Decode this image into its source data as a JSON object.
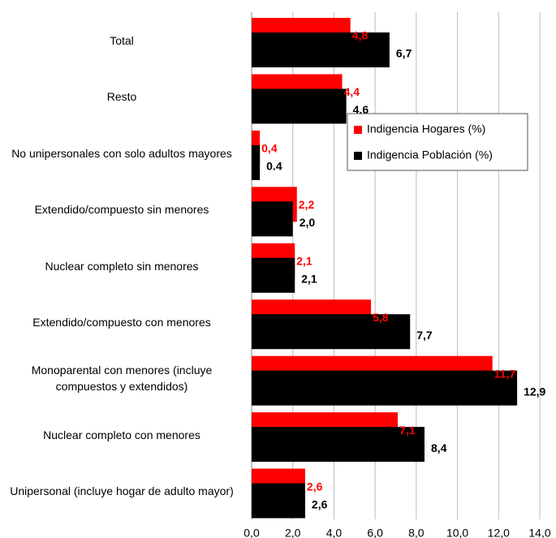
{
  "chart_data": {
    "type": "bar",
    "orientation": "horizontal",
    "categories": [
      "Total",
      "Resto",
      "No unipersonales con solo adultos mayores",
      "Extendido/compuesto sin menores",
      "Nuclear completo sin menores",
      "Extendido/compuesto con menores",
      "Monoparental con menores (incluye compuestos y extendidos)",
      "Nuclear completo con menores",
      "Unipersonal (incluye hogar de adulto mayor)"
    ],
    "series": [
      {
        "name": "Indigencia Hogares (%)",
        "color": "#ff0000",
        "values": [
          4.8,
          4.4,
          0.4,
          2.2,
          2.1,
          5.8,
          11.7,
          7.1,
          2.6
        ],
        "value_labels": [
          "4,8",
          "4,4",
          "0,4",
          "2,2",
          "2,1",
          "5,8",
          "11,7",
          "7,1",
          "2,6"
        ]
      },
      {
        "name": "Indigencia Población (%)",
        "color": "#000000",
        "values": [
          6.7,
          4.6,
          0.4,
          2.0,
          2.1,
          7.7,
          12.9,
          8.4,
          2.6
        ],
        "value_labels": [
          "6,7",
          "4,6",
          "0.4",
          "2,0",
          "2,1",
          "7,7",
          "12,9",
          "8,4",
          "2,6"
        ]
      }
    ],
    "xlim": [
      0,
      14
    ],
    "xticks": [
      {
        "value": 0,
        "label": "0,0"
      },
      {
        "value": 2,
        "label": "2,0"
      },
      {
        "value": 4,
        "label": "4,0"
      },
      {
        "value": 6,
        "label": "6,0"
      },
      {
        "value": 8,
        "label": "8,0"
      },
      {
        "value": 10,
        "label": "10,0"
      },
      {
        "value": 12,
        "label": "12,0"
      },
      {
        "value": 14,
        "label": "14,0"
      }
    ],
    "grid": true,
    "legend": "upper right"
  }
}
